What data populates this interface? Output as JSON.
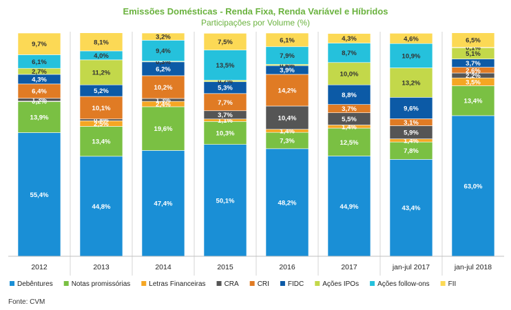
{
  "chart_data": {
    "type": "bar",
    "stacked": true,
    "title": "Emissões Domésticas - Renda Fixa, Renda Variável e Híbridos",
    "subtitle": "Participações por Volume (%)",
    "categories": [
      "2012",
      "2013",
      "2014",
      "2015",
      "2016",
      "2017",
      "jan-jul 2017",
      "jan-jul 2018"
    ],
    "series": [
      {
        "name": "Debêntures",
        "color": "#1a8fd6",
        "label_color": "#ffffff",
        "values": [
          55.4,
          44.8,
          47.4,
          50.1,
          48.2,
          44.9,
          43.4,
          63.0
        ]
      },
      {
        "name": "Notas promissórias",
        "color": "#7ac043",
        "label_color": "#ffffff",
        "values": [
          13.9,
          13.4,
          19.6,
          10.3,
          7.3,
          12.5,
          7.8,
          13.4
        ]
      },
      {
        "name": "Letras Financeiras",
        "color": "#f5a623",
        "label_color": "#ffffff",
        "values": [
          0.2,
          2.5,
          2.4,
          1.1,
          1.4,
          1.4,
          1.4,
          3.5
        ]
      },
      {
        "name": "CRA",
        "color": "#555555",
        "label_color": "#ffffff",
        "values": [
          1.3,
          0.8,
          1.3,
          3.7,
          10.4,
          5.5,
          5.9,
          2.2
        ]
      },
      {
        "name": "CRI",
        "color": "#e07b24",
        "label_color": "#ffffff",
        "values": [
          6.4,
          10.1,
          10.2,
          7.7,
          14.2,
          3.7,
          3.1,
          2.6
        ]
      },
      {
        "name": "FIDC",
        "color": "#0c5aa6",
        "label_color": "#ffffff",
        "values": [
          4.3,
          5.2,
          6.2,
          5.3,
          3.9,
          8.8,
          9.6,
          3.7
        ]
      },
      {
        "name": "Ações IPOs",
        "color": "#c3d84a",
        "label_color": "#333333",
        "values": [
          2.7,
          11.2,
          0.3,
          0.7,
          0.6,
          10.0,
          13.2,
          5.1
        ]
      },
      {
        "name": "Ações follow-ons",
        "color": "#25c1dc",
        "label_color": "#333333",
        "values": [
          6.1,
          4.0,
          9.4,
          13.5,
          7.9,
          8.7,
          10.9,
          0.1
        ]
      },
      {
        "name": "FII",
        "color": "#fcd955",
        "label_color": "#333333",
        "values": [
          9.7,
          8.1,
          3.2,
          7.5,
          6.1,
          4.3,
          4.6,
          6.5
        ]
      }
    ],
    "labels": [
      [
        "55,4%",
        "13,9%",
        "0,2%",
        "1,3%",
        "6,4%",
        "4,3%",
        "2,7%",
        "6,1%",
        "9,7%"
      ],
      [
        "44,8%",
        "13,4%",
        "2,5%",
        "0,8%",
        "10,1%",
        "5,2%",
        "11,2%",
        "4,0%",
        "8,1%"
      ],
      [
        "47,4%",
        "19,6%",
        "2,4%",
        "1,3%",
        "10,2%",
        "6,2%",
        "0,3%",
        "9,4%",
        "3,2%"
      ],
      [
        "50,1%",
        "10,3%",
        "1,1%",
        "3,7%",
        "7,7%",
        "5,3%",
        "0,7%",
        "13,5%",
        "7,5%"
      ],
      [
        "48,2%",
        "7,3%",
        "1,4%",
        "10,4%",
        "14,2%",
        "3,9%",
        "0,6%",
        "7,9%",
        "6,1%"
      ],
      [
        "44,9%",
        "12,5%",
        "1,4%",
        "5,5%",
        "3,7%",
        "8,8%",
        "10,0%",
        "8,7%",
        "4,3%"
      ],
      [
        "43,4%",
        "7,8%",
        "1,4%",
        "5,9%",
        "3,1%",
        "9,6%",
        "13,2%",
        "10,9%",
        "4,6%"
      ],
      [
        "63,0%",
        "13,4%",
        "3,5%",
        "2,2%",
        "2,6%",
        "3,7%",
        "5,1%",
        "0,1%",
        "6,5%"
      ]
    ],
    "ylim": [
      0,
      100
    ],
    "legend": "bottom",
    "grid": false,
    "title_color": "#6ab23e"
  },
  "source": "Fonte: CVM"
}
